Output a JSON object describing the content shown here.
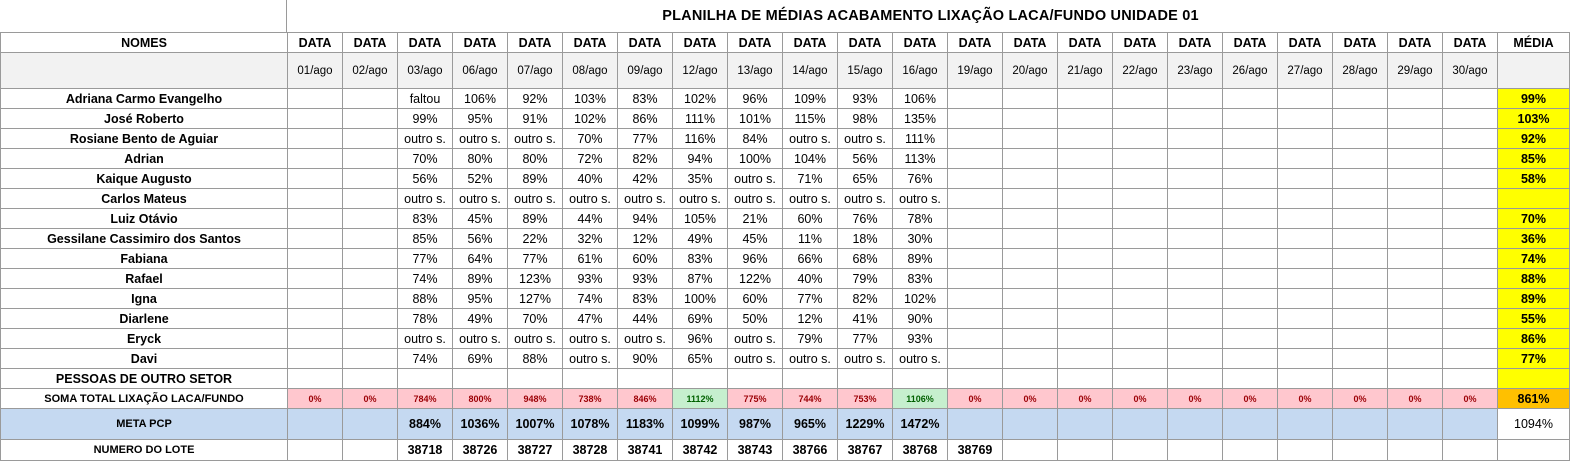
{
  "title": "PLANILHA DE MÉDIAS ACABAMENTO LIXAÇÃO LACA/FUNDO UNIDADE 01",
  "header": {
    "nomes": "NOMES",
    "data_label": "DATA",
    "media": "MÉDIA",
    "dates": [
      "01/ago",
      "02/ago",
      "03/ago",
      "06/ago",
      "07/ago",
      "08/ago",
      "09/ago",
      "12/ago",
      "13/ago",
      "14/ago",
      "15/ago",
      "16/ago",
      "19/ago",
      "20/ago",
      "21/ago",
      "22/ago",
      "23/ago",
      "26/ago",
      "27/ago",
      "28/ago",
      "29/ago",
      "30/ago"
    ]
  },
  "people": [
    {
      "name": "Adriana Carmo Evangelho",
      "values": [
        "",
        "",
        "faltou",
        "106%",
        "92%",
        "103%",
        "83%",
        "102%",
        "96%",
        "109%",
        "93%",
        "106%",
        "",
        "",
        "",
        "",
        "",
        "",
        "",
        "",
        "",
        ""
      ],
      "media": "99%"
    },
    {
      "name": "José Roberto",
      "values": [
        "",
        "",
        "99%",
        "95%",
        "91%",
        "102%",
        "86%",
        "111%",
        "101%",
        "115%",
        "98%",
        "135%",
        "",
        "",
        "",
        "",
        "",
        "",
        "",
        "",
        "",
        ""
      ],
      "media": "103%"
    },
    {
      "name": "Rosiane Bento de Aguiar",
      "values": [
        "",
        "",
        "outro s.",
        "outro s.",
        "outro s.",
        "70%",
        "77%",
        "116%",
        "84%",
        "outro s.",
        "outro s.",
        "111%",
        "",
        "",
        "",
        "",
        "",
        "",
        "",
        "",
        "",
        ""
      ],
      "media": "92%"
    },
    {
      "name": "Adrian",
      "values": [
        "",
        "",
        "70%",
        "80%",
        "80%",
        "72%",
        "82%",
        "94%",
        "100%",
        "104%",
        "56%",
        "113%",
        "",
        "",
        "",
        "",
        "",
        "",
        "",
        "",
        "",
        ""
      ],
      "media": "85%"
    },
    {
      "name": "Kaique Augusto",
      "values": [
        "",
        "",
        "56%",
        "52%",
        "89%",
        "40%",
        "42%",
        "35%",
        "outro s.",
        "71%",
        "65%",
        "76%",
        "",
        "",
        "",
        "",
        "",
        "",
        "",
        "",
        "",
        ""
      ],
      "media": "58%"
    },
    {
      "name": "Carlos Mateus",
      "values": [
        "",
        "",
        "outro s.",
        "outro s.",
        "outro s.",
        "outro s.",
        "outro s.",
        "outro s.",
        "outro s.",
        "outro s.",
        "outro s.",
        "outro s.",
        "",
        "",
        "",
        "",
        "",
        "",
        "",
        "",
        "",
        ""
      ],
      "media": ""
    },
    {
      "name": "Luiz Otávio",
      "values": [
        "",
        "",
        "83%",
        "45%",
        "89%",
        "44%",
        "94%",
        "105%",
        "21%",
        "60%",
        "76%",
        "78%",
        "",
        "",
        "",
        "",
        "",
        "",
        "",
        "",
        "",
        ""
      ],
      "media": "70%"
    },
    {
      "name": "Gessilane Cassimiro dos Santos",
      "values": [
        "",
        "",
        "85%",
        "56%",
        "22%",
        "32%",
        "12%",
        "49%",
        "45%",
        "11%",
        "18%",
        "30%",
        "",
        "",
        "",
        "",
        "",
        "",
        "",
        "",
        "",
        ""
      ],
      "media": "36%"
    },
    {
      "name": "Fabiana",
      "values": [
        "",
        "",
        "77%",
        "64%",
        "77%",
        "61%",
        "60%",
        "83%",
        "96%",
        "66%",
        "68%",
        "89%",
        "",
        "",
        "",
        "",
        "",
        "",
        "",
        "",
        "",
        ""
      ],
      "media": "74%"
    },
    {
      "name": "Rafael",
      "values": [
        "",
        "",
        "74%",
        "89%",
        "123%",
        "93%",
        "93%",
        "87%",
        "122%",
        "40%",
        "79%",
        "83%",
        "",
        "",
        "",
        "",
        "",
        "",
        "",
        "",
        "",
        ""
      ],
      "media": "88%"
    },
    {
      "name": "Igna",
      "values": [
        "",
        "",
        "88%",
        "95%",
        "127%",
        "74%",
        "83%",
        "100%",
        "60%",
        "77%",
        "82%",
        "102%",
        "",
        "",
        "",
        "",
        "",
        "",
        "",
        "",
        "",
        ""
      ],
      "media": "89%"
    },
    {
      "name": "Diarlene",
      "values": [
        "",
        "",
        "78%",
        "49%",
        "70%",
        "47%",
        "44%",
        "69%",
        "50%",
        "12%",
        "41%",
        "90%",
        "",
        "",
        "",
        "",
        "",
        "",
        "",
        "",
        "",
        ""
      ],
      "media": "55%"
    },
    {
      "name": "Eryck",
      "values": [
        "",
        "",
        "outro s.",
        "outro s.",
        "outro s.",
        "outro s.",
        "outro s.",
        "96%",
        "outro s.",
        "79%",
        "77%",
        "93%",
        "",
        "",
        "",
        "",
        "",
        "",
        "",
        "",
        "",
        ""
      ],
      "media": "86%"
    },
    {
      "name": "Davi",
      "values": [
        "",
        "",
        "74%",
        "69%",
        "88%",
        "outro s.",
        "90%",
        "65%",
        "outro s.",
        "outro s.",
        "outro s.",
        "outro s.",
        "",
        "",
        "",
        "",
        "",
        "",
        "",
        "",
        "",
        ""
      ],
      "media": "77%"
    },
    {
      "name": "PESSOAS DE OUTRO SETOR",
      "values": [
        "",
        "",
        "",
        "",
        "",
        "",
        "",
        "",
        "",
        "",
        "",
        "",
        "",
        "",
        "",
        "",
        "",
        "",
        "",
        "",
        "",
        ""
      ],
      "media": ""
    }
  ],
  "soma": {
    "label": "SOMA TOTAL LIXAÇÃO LACA/FUNDO",
    "values": [
      "0%",
      "0%",
      "784%",
      "800%",
      "948%",
      "738%",
      "846%",
      "1112%",
      "775%",
      "744%",
      "753%",
      "1106%",
      "0%",
      "0%",
      "0%",
      "0%",
      "0%",
      "0%",
      "0%",
      "0%",
      "0%",
      "0%"
    ],
    "highlight_green": [
      7,
      11
    ],
    "media": "861%"
  },
  "meta": {
    "label": "META PCP",
    "values": [
      "",
      "",
      "884%",
      "1036%",
      "1007%",
      "1078%",
      "1183%",
      "1099%",
      "987%",
      "965%",
      "1229%",
      "1472%",
      "",
      "",
      "",
      "",
      "",
      "",
      "",
      "",
      "",
      ""
    ],
    "media": "1094%"
  },
  "lote": {
    "label": "NUMERO DO LOTE",
    "values": [
      "",
      "",
      "38718",
      "38726",
      "38727",
      "38728",
      "38741",
      "38742",
      "38743",
      "38766",
      "38767",
      "38768",
      "38769",
      "",
      "",
      "",
      "",
      "",
      "",
      "",
      "",
      ""
    ],
    "media": ""
  },
  "colors": {
    "yellow": "#ffff00",
    "pink": "#ffc7ce",
    "green": "#c6efce",
    "orange": "#ffc000",
    "blue": "#c5d9f1"
  }
}
